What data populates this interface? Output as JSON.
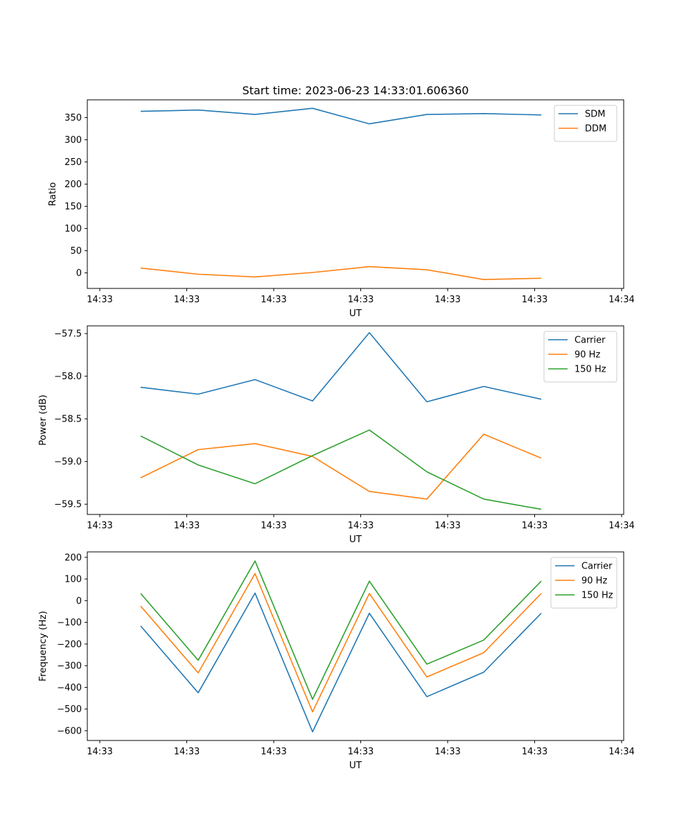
{
  "figure": {
    "title": "Start time: 2023-06-23 14:33:01.606360"
  },
  "colors": {
    "blue": "#1f77b4",
    "orange": "#ff7f0e",
    "green": "#2ca02c"
  },
  "chart_data": [
    {
      "type": "line",
      "title": "Start time: 2023-06-23 14:33:01.606360",
      "xlabel": "UT",
      "ylabel": "Ratio",
      "x_tick_labels": [
        "14:33",
        "14:33",
        "14:33",
        "14:33",
        "14:33",
        "14:33",
        "14:34"
      ],
      "y_ticks": [
        0,
        50,
        100,
        150,
        200,
        250,
        300,
        350
      ],
      "ylim": [
        -35,
        390
      ],
      "grid": false,
      "legend": "top-right",
      "series": [
        {
          "name": "SDM",
          "color": "#1f77b4",
          "values": [
            364,
            367,
            357,
            371,
            336,
            357,
            359,
            356
          ]
        },
        {
          "name": "DDM",
          "color": "#ff7f0e",
          "values": [
            11,
            -3,
            -9,
            1,
            14,
            7,
            -15,
            -12
          ]
        }
      ]
    },
    {
      "type": "line",
      "xlabel": "UT",
      "ylabel": "Power (dB)",
      "x_tick_labels": [
        "14:33",
        "14:33",
        "14:33",
        "14:33",
        "14:33",
        "14:33",
        "14:34"
      ],
      "y_ticks": [
        -57.5,
        -58.0,
        -58.5,
        -59.0,
        -59.5
      ],
      "y_tick_labels": [
        "−57.5",
        "−58.0",
        "−58.5",
        "−59.0",
        "−59.5"
      ],
      "ylim": [
        -59.62,
        -57.41
      ],
      "grid": false,
      "legend": "top-right",
      "series": [
        {
          "name": "Carrier",
          "color": "#1f77b4",
          "values": [
            -58.13,
            -58.21,
            -58.04,
            -58.29,
            -57.49,
            -58.3,
            -58.12,
            -58.27
          ]
        },
        {
          "name": "90 Hz",
          "color": "#ff7f0e",
          "values": [
            -59.19,
            -58.86,
            -58.79,
            -58.94,
            -59.35,
            -59.44,
            -58.68,
            -58.96
          ]
        },
        {
          "name": "150 Hz",
          "color": "#2ca02c",
          "values": [
            -58.7,
            -59.04,
            -59.26,
            -58.93,
            -58.63,
            -59.12,
            -59.44,
            -59.56
          ]
        }
      ]
    },
    {
      "type": "line",
      "xlabel": "UT",
      "ylabel": "Frequency (Hz)",
      "x_tick_labels": [
        "14:33",
        "14:33",
        "14:33",
        "14:33",
        "14:33",
        "14:33",
        "14:34"
      ],
      "y_ticks": [
        200,
        100,
        0,
        -100,
        -200,
        -300,
        -400,
        -500,
        -600
      ],
      "y_tick_labels": [
        "200",
        "100",
        "0",
        "−100",
        "−200",
        "−300",
        "−400",
        "−500",
        "−600"
      ],
      "ylim": [
        -645,
        225
      ],
      "grid": false,
      "legend": "top-right",
      "series": [
        {
          "name": "Carrier",
          "color": "#1f77b4",
          "values": [
            -117,
            -425,
            35,
            -605,
            -58,
            -443,
            -330,
            -58
          ]
        },
        {
          "name": "90 Hz",
          "color": "#ff7f0e",
          "values": [
            -25,
            -333,
            125,
            -513,
            33,
            -352,
            -240,
            33
          ]
        },
        {
          "name": "150 Hz",
          "color": "#2ca02c",
          "values": [
            33,
            -275,
            183,
            -455,
            90,
            -293,
            -182,
            90
          ]
        }
      ]
    }
  ]
}
